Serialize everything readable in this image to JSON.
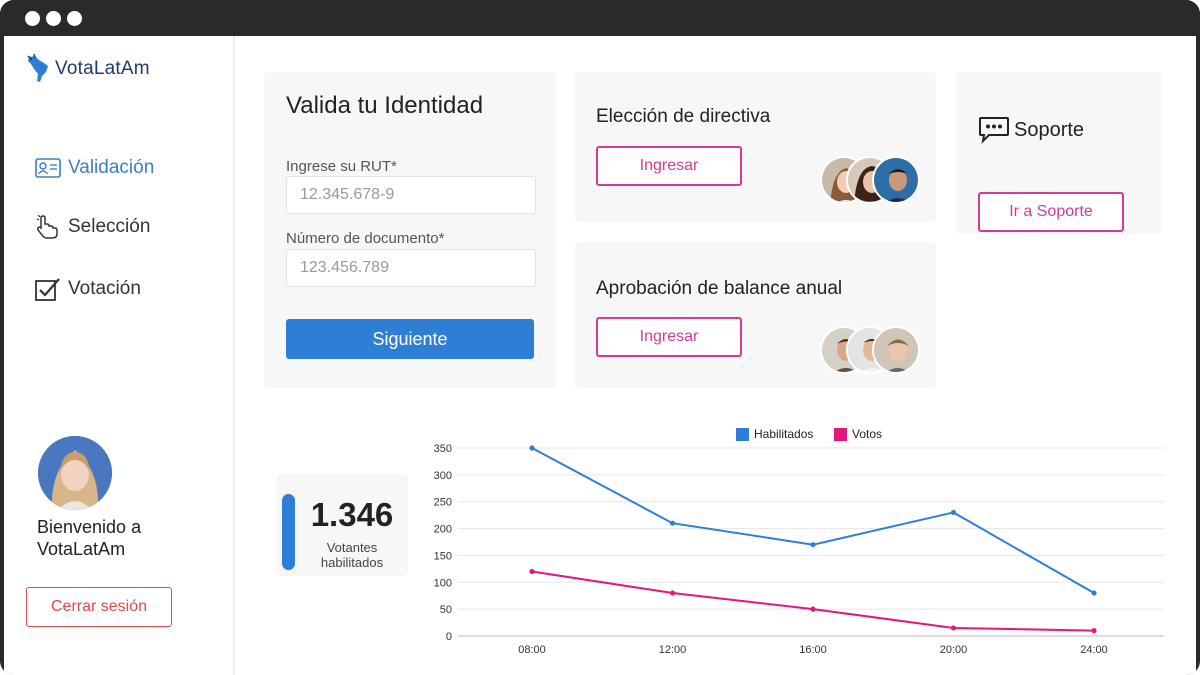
{
  "app": {
    "name": "VotaLatAm"
  },
  "sidebar": {
    "items": [
      {
        "label": "Validación",
        "icon": "id-card-icon",
        "active": true
      },
      {
        "label": "Selección",
        "icon": "pointing-hand-icon",
        "active": false
      },
      {
        "label": "Votación",
        "icon": "checkbox-icon",
        "active": false
      }
    ],
    "welcome": "Bienvenido a VotaLatAm",
    "logout_label": "Cerrar sesión"
  },
  "identity": {
    "title": "Valida tu Identidad",
    "rut_label": "Ingrese su RUT*",
    "rut_placeholder": "12.345.678-9",
    "doc_label": "Número de documento*",
    "doc_placeholder": "123.456.789",
    "next_label": "Siguiente"
  },
  "elections": [
    {
      "title": "Elección de directiva",
      "button_label": "Ingresar"
    },
    {
      "title": "Aprobación de balance anual",
      "button_label": "Ingresar"
    }
  ],
  "support": {
    "title": "Soporte",
    "button_label": "Ir a Soporte"
  },
  "stats": {
    "value": "1.346",
    "label_line1": "Votantes",
    "label_line2": "habilitados"
  },
  "colors": {
    "primary": "#2f7ed6",
    "accent": "#d63a94",
    "danger": "#e0484b",
    "habilitados": "#2f7ed6",
    "votos": "#e6167f"
  },
  "chart_data": {
    "type": "line",
    "x": [
      "08:00",
      "12:00",
      "16:00",
      "20:00",
      "24:00"
    ],
    "series": [
      {
        "name": "Habilitados",
        "values": [
          350,
          210,
          170,
          230,
          80
        ]
      },
      {
        "name": "Votos",
        "values": [
          120,
          80,
          50,
          15,
          10
        ]
      }
    ],
    "yticks": [
      0,
      50,
      100,
      150,
      200,
      250,
      300,
      350
    ],
    "ylim": [
      0,
      350
    ],
    "grid": true,
    "legend": "top-center"
  }
}
